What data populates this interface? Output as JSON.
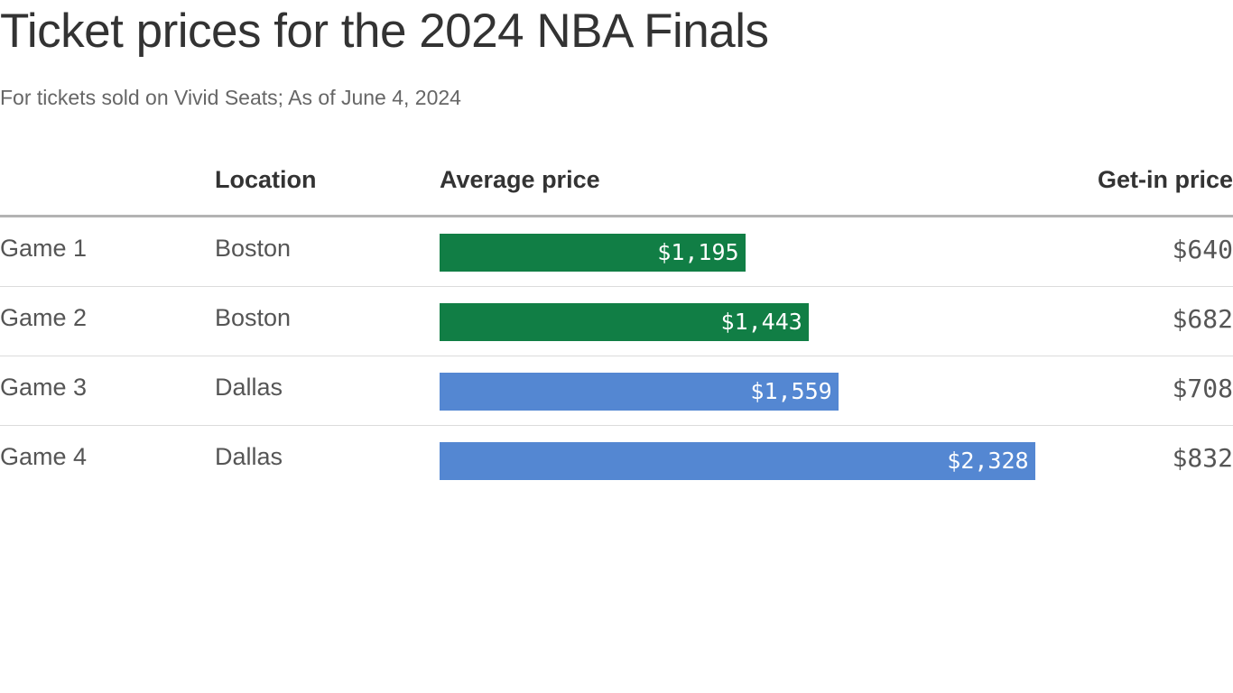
{
  "chart_data": {
    "type": "table",
    "title": "Ticket prices for the 2024 NBA Finals",
    "subtitle": "For tickets sold on Vivid Seats; As of June 4, 2024",
    "columns": [
      "",
      "Location",
      "Average price",
      "Get-in price"
    ],
    "rows": [
      {
        "game": "Game 1",
        "location": "Boston",
        "average_price": 1195,
        "average_label": "$1,195",
        "getin_price": 640,
        "getin_label": "$640",
        "color": "#117e45"
      },
      {
        "game": "Game 2",
        "location": "Boston",
        "average_price": 1443,
        "average_label": "$1,443",
        "getin_price": 682,
        "getin_label": "$682",
        "color": "#117e45"
      },
      {
        "game": "Game 3",
        "location": "Dallas",
        "average_price": 1559,
        "average_label": "$1,559",
        "getin_price": 708,
        "getin_label": "$708",
        "color": "#5487d2"
      },
      {
        "game": "Game 4",
        "location": "Dallas",
        "average_price": 2328,
        "average_label": "$2,328",
        "getin_price": 832,
        "getin_label": "$832",
        "color": "#5487d2"
      }
    ],
    "bar_range": [
      0,
      3000
    ]
  }
}
